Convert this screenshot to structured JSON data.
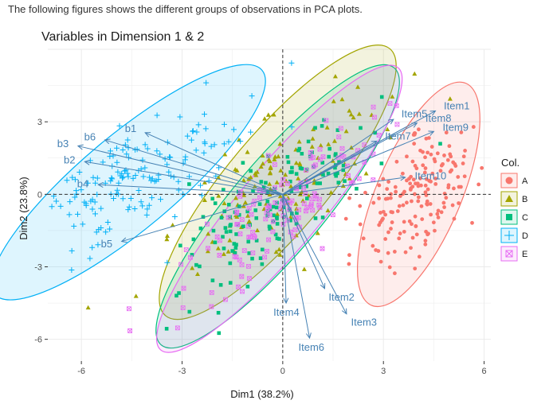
{
  "caption": "The following figures shows the different groups of observations in PCA plots.",
  "chart_data": {
    "type": "scatter",
    "title": "Variables in Dimension 1 & 2",
    "xlabel": "Dim1 (38.2%)",
    "ylabel": "Dim2 (23.8%)",
    "xlim": [
      -7.0,
      6.2
    ],
    "ylim": [
      -6.9,
      6.0
    ],
    "xticks": [
      -6,
      -3,
      0,
      3,
      6
    ],
    "yticks": [
      -6,
      -3,
      0,
      3
    ],
    "grid": true,
    "legend": {
      "title": "Col.",
      "position": "right"
    },
    "series": [
      {
        "name": "A",
        "color": "#F8766D",
        "marker": "circle",
        "ellipse": {
          "center": [
            4.05,
            0.0
          ],
          "rx": 3.6,
          "ry": 1.75,
          "angle_deg": 67
        }
      },
      {
        "name": "B",
        "color": "#A3A500",
        "marker": "triangle",
        "ellipse": {
          "center": [
            -0.15,
            0.5
          ],
          "rx": 5.2,
          "ry": 2.05,
          "angle_deg": 50
        }
      },
      {
        "name": "C",
        "color": "#00BF7D",
        "marker": "square",
        "ellipse": {
          "center": [
            -0.15,
            -0.5
          ],
          "rx": 5.4,
          "ry": 1.9,
          "angle_deg": 50
        }
      },
      {
        "name": "D",
        "color": "#00B0F6",
        "marker": "plus",
        "ellipse": {
          "center": [
            -4.6,
            0.5
          ],
          "rx": 5.2,
          "ry": 1.95,
          "angle_deg": 40
        }
      },
      {
        "name": "E",
        "color": "#E76BF3",
        "marker": "square-x",
        "ellipse": {
          "center": [
            -0.1,
            -0.6
          ],
          "rx": 5.5,
          "ry": 1.7,
          "angle_deg": 50
        }
      }
    ],
    "vectors": [
      {
        "label": "Item1",
        "x": 4.55,
        "y": 3.45
      },
      {
        "label": "Item8",
        "x": 4.0,
        "y": 2.95
      },
      {
        "label": "Item5",
        "x": 3.3,
        "y": 3.1
      },
      {
        "label": "Item7",
        "x": 2.8,
        "y": 2.2
      },
      {
        "label": "Item9",
        "x": 4.5,
        "y": 2.6
      },
      {
        "label": "Item10",
        "x": 3.65,
        "y": 0.7
      },
      {
        "label": "Item2",
        "x": 1.25,
        "y": -3.9
      },
      {
        "label": "Item3",
        "x": 1.9,
        "y": -4.95
      },
      {
        "label": "Item4",
        "x": 0.1,
        "y": -4.5
      },
      {
        "label": "Item6",
        "x": 0.8,
        "y": -5.95
      },
      {
        "label": "b1",
        "x": -4.1,
        "y": 2.55
      },
      {
        "label": "b6",
        "x": -5.3,
        "y": 2.25
      },
      {
        "label": "b3",
        "x": -6.1,
        "y": 2.0
      },
      {
        "label": "b2",
        "x": -5.9,
        "y": 1.35
      },
      {
        "label": "b4",
        "x": -5.5,
        "y": 0.4
      },
      {
        "label": "b5",
        "x": -4.8,
        "y": -1.95
      }
    ]
  }
}
